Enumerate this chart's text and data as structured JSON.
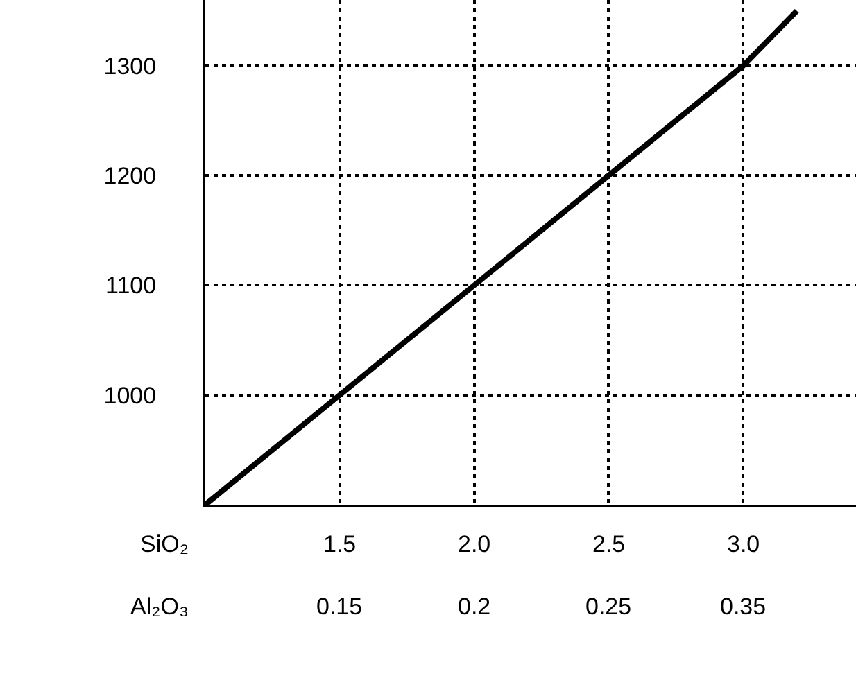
{
  "chart_data": {
    "type": "line",
    "x": [
      1.0,
      1.5,
      2.0,
      2.5,
      3.0,
      3.2
    ],
    "series": [
      {
        "color": "#000000",
        "values": [
          900,
          1000,
          1100,
          1200,
          1300,
          1350
        ]
      }
    ],
    "xlabel": "SiO₂",
    "annotations": [
      "Al₂O₃",
      "0.15",
      "0.2",
      "0.25",
      "0.35"
    ],
    "xlim": [
      1.0,
      3.42
    ],
    "xticks": [
      1.5,
      {
        "value": 2.0,
        "label": "2.0"
      },
      2.5,
      {
        "value": 3.0,
        "label": "3.0"
      }
    ],
    "ylim": [
      900,
      1360
    ],
    "yticks": [
      {
        "value": 900,
        "label": null
      },
      1000,
      1100,
      1200,
      1300
    ],
    "grid": true,
    "marker": "none",
    "line_style": "solid"
  }
}
